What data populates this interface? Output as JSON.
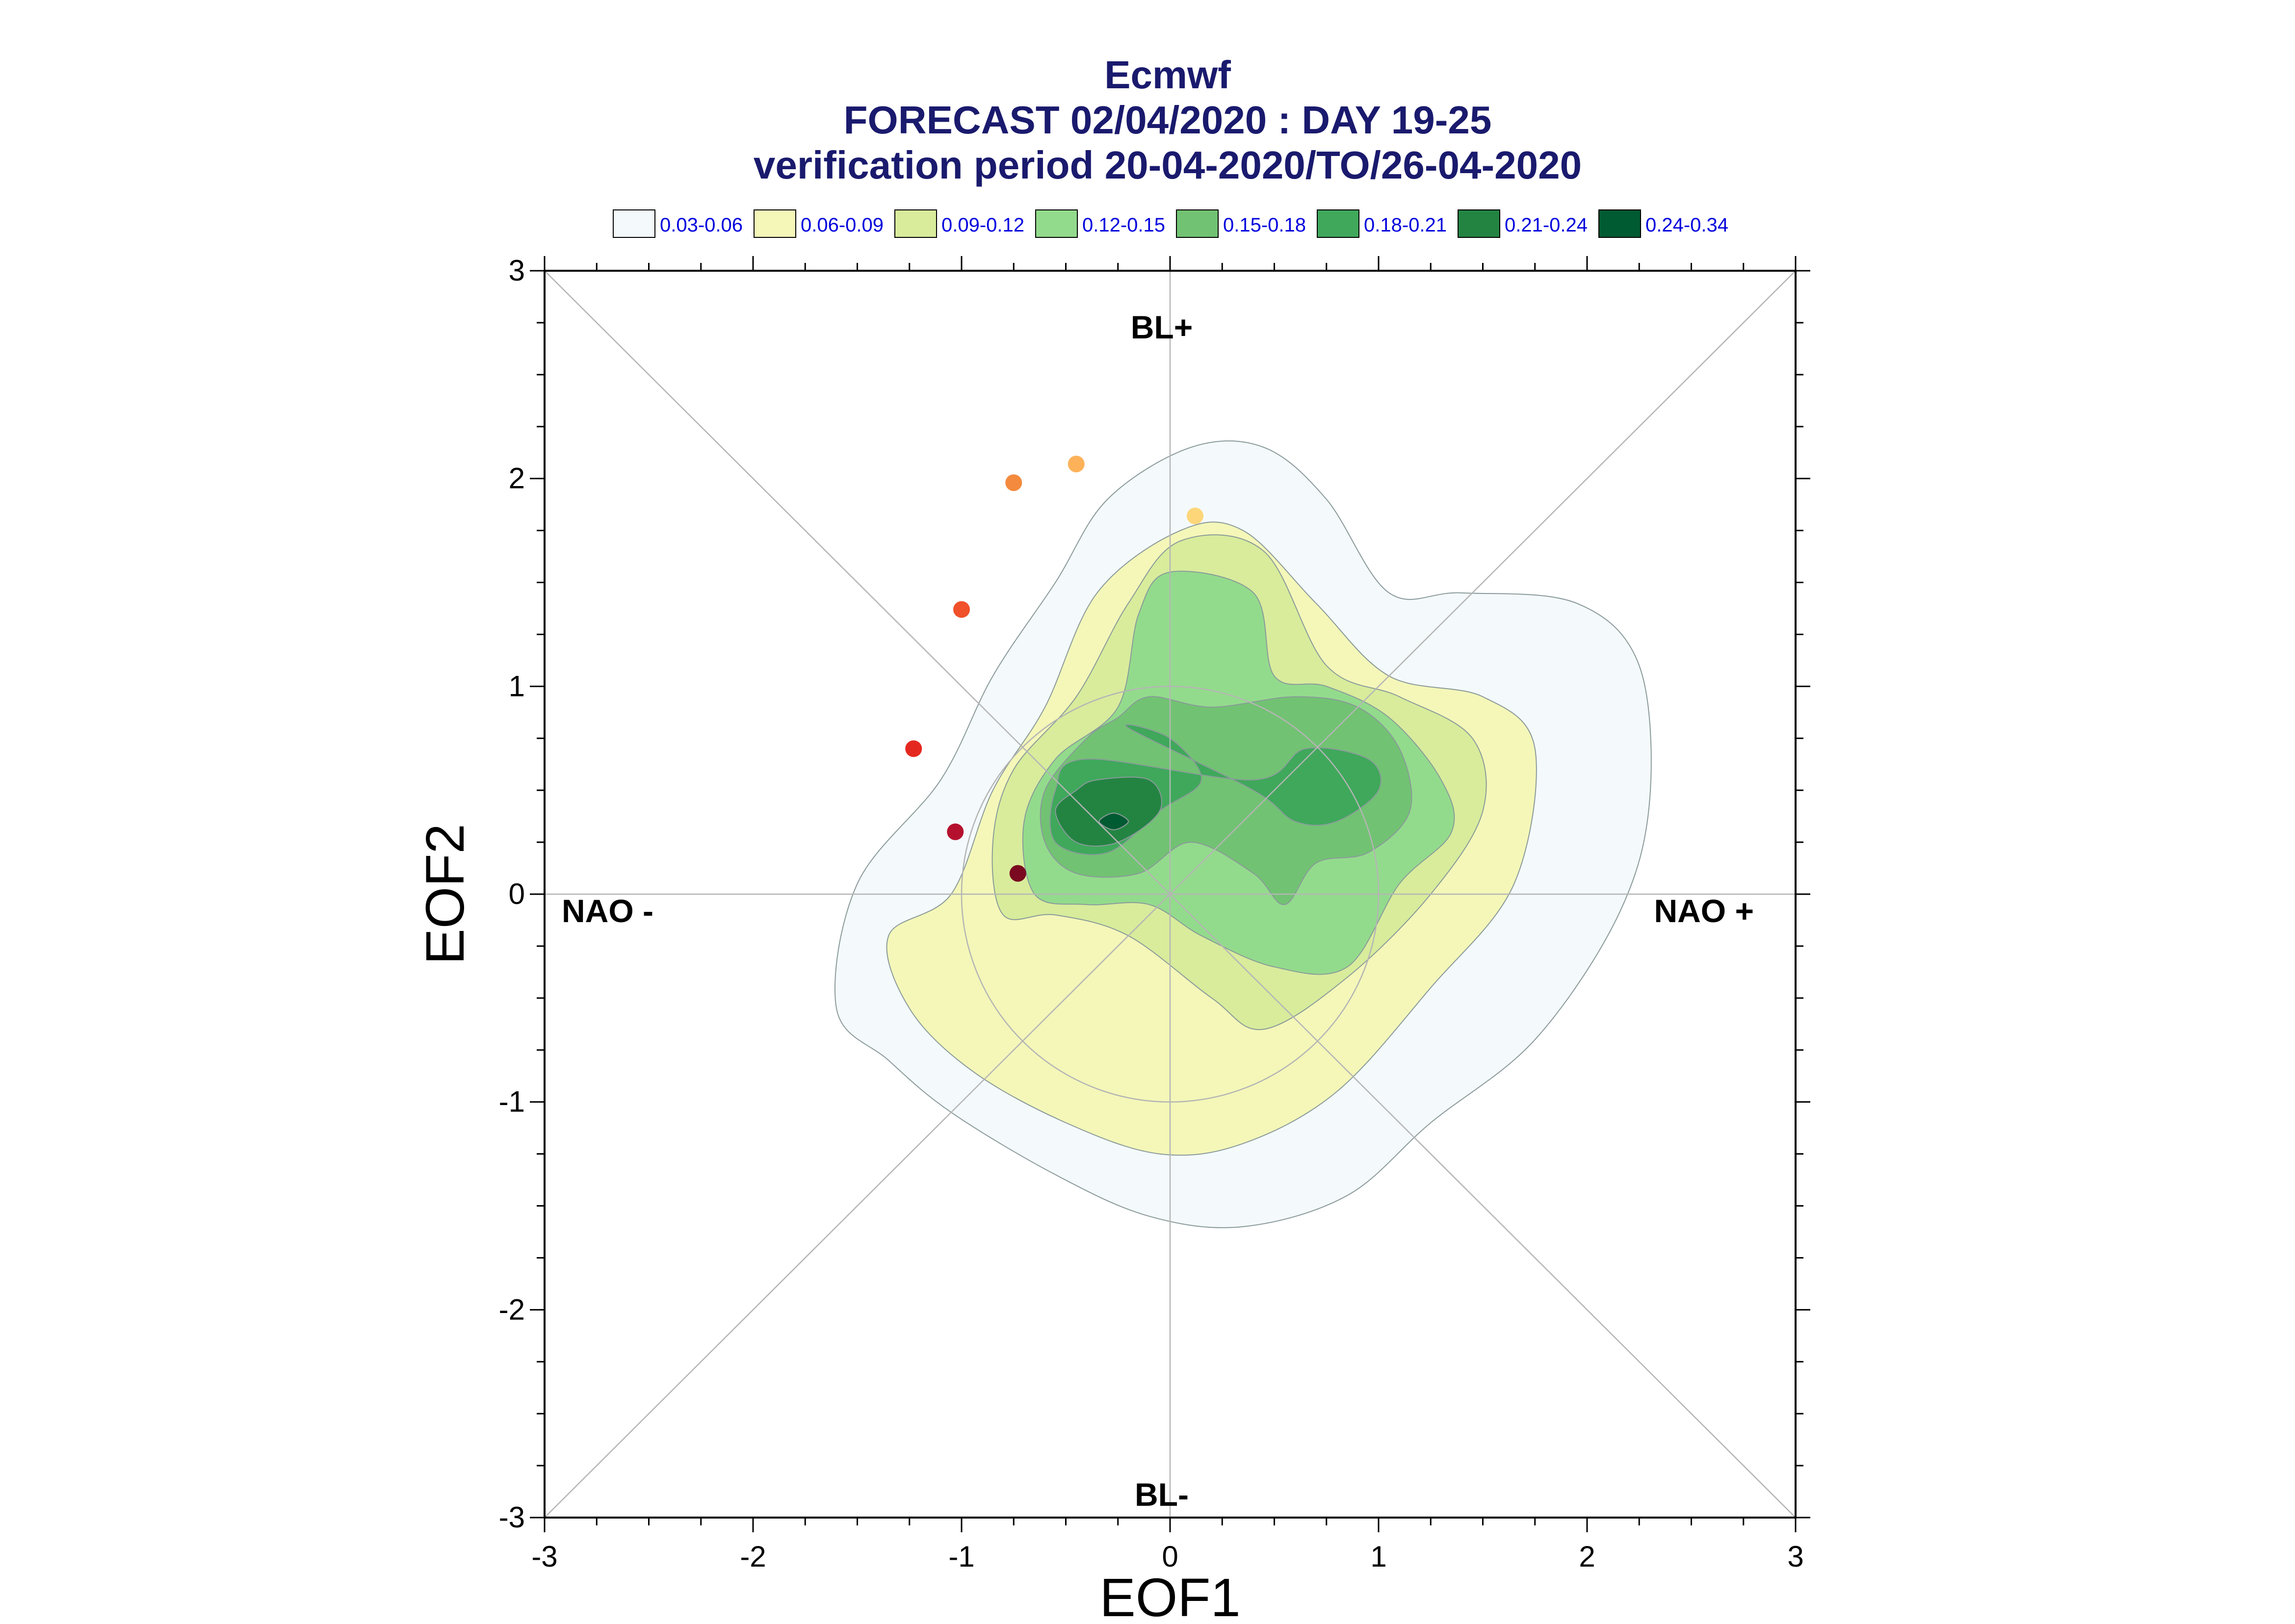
{
  "chart_data": {
    "type": "scatter",
    "title": "Ecmwf",
    "subtitle_lines": [
      "FORECAST 02/04/2020 : DAY 19-25",
      "verification period 20-04-2020/TO/26-04-2020"
    ],
    "xlabel": "EOF1",
    "ylabel": "EOF2",
    "xlim": [
      -3,
      3
    ],
    "ylim": [
      -3,
      3
    ],
    "xticks": [
      "-3",
      "-2",
      "-1",
      "0",
      "1",
      "2",
      "3"
    ],
    "yticks": [
      "-3",
      "-2",
      "-1",
      "0",
      "1",
      "2",
      "3"
    ],
    "grid": false,
    "legend_placement": "top",
    "legend": [
      {
        "label": "0.03-0.06",
        "color": "#f4f9fc"
      },
      {
        "label": "0.06-0.09",
        "color": "#f4f7b8"
      },
      {
        "label": "0.09-0.12",
        "color": "#d8ec9c"
      },
      {
        "label": "0.12-0.15",
        "color": "#93db8c"
      },
      {
        "label": "0.15-0.18",
        "color": "#72c273"
      },
      {
        "label": "0.18-0.21",
        "color": "#3fa85b"
      },
      {
        "label": "0.21-0.24",
        "color": "#238442"
      },
      {
        "label": "0.24-0.34",
        "color": "#005a32"
      }
    ],
    "regime_labels": {
      "top": "BL+",
      "bottom": "BL-",
      "left": "NAO -",
      "right": "NAO +"
    },
    "density_contours": [
      {
        "level": "0.03-0.06",
        "color": "#f4f9fc",
        "x": [
          0.1,
          0.45,
          0.75,
          1.05,
          1.4,
          1.95,
          2.25,
          2.3,
          2.15,
          1.75,
          1.25,
          0.85,
          0.35,
          -0.1,
          -0.55,
          -1.05,
          -1.35,
          -1.6,
          -1.5,
          -1.1,
          -0.85,
          -0.55,
          -0.3
        ],
        "y": [
          2.15,
          2.15,
          1.9,
          1.45,
          1.45,
          1.4,
          1.1,
          0.45,
          -0.1,
          -0.7,
          -1.1,
          -1.45,
          -1.6,
          -1.55,
          -1.35,
          -1.05,
          -0.8,
          -0.55,
          0.05,
          0.55,
          1.05,
          1.5,
          1.9
        ]
      },
      {
        "level": "0.06-0.09",
        "color": "#f4f7b8",
        "x": [
          0.05,
          0.35,
          0.7,
          1.05,
          1.5,
          1.75,
          1.65,
          1.25,
          0.8,
          0.35,
          -0.05,
          -0.5,
          -0.95,
          -1.25,
          -1.35,
          -1.05,
          -0.85,
          -0.6,
          -0.35
        ],
        "y": [
          1.75,
          1.75,
          1.4,
          1.05,
          0.95,
          0.7,
          0.05,
          -0.45,
          -0.95,
          -1.2,
          -1.25,
          -1.1,
          -0.85,
          -0.55,
          -0.2,
          0.0,
          0.5,
          0.9,
          1.45
        ]
      },
      {
        "level": "0.09-0.12",
        "color": "#d8ec9c",
        "x": [
          0.05,
          0.45,
          0.75,
          1.1,
          1.45,
          1.5,
          1.25,
          0.85,
          0.45,
          0.2,
          -0.2,
          -0.55,
          -0.8,
          -0.85,
          -0.75,
          -0.45,
          -0.2
        ],
        "y": [
          1.7,
          1.65,
          1.1,
          0.95,
          0.75,
          0.4,
          0.0,
          -0.4,
          -0.65,
          -0.5,
          -0.2,
          -0.1,
          -0.1,
          0.25,
          0.6,
          0.95,
          1.4
        ]
      },
      {
        "level": "0.12-0.15",
        "color": "#93db8c",
        "x": [
          0.0,
          0.4,
          0.5,
          0.75,
          1.05,
          1.3,
          1.35,
          1.1,
          0.85,
          0.5,
          0.15,
          -0.1,
          -0.4,
          -0.65,
          -0.7,
          -0.55,
          -0.25,
          -0.15
        ],
        "y": [
          1.55,
          1.45,
          1.05,
          1.0,
          0.85,
          0.55,
          0.3,
          0.05,
          -0.35,
          -0.35,
          -0.2,
          -0.05,
          -0.05,
          0.0,
          0.35,
          0.65,
          0.9,
          1.35
        ]
      },
      {
        "level": "0.15-0.18",
        "color": "#72c273",
        "x": [
          -0.1,
          0.2,
          0.6,
          0.9,
          1.1,
          1.15,
          0.95,
          0.7,
          0.55,
          0.4,
          0.1,
          -0.15,
          -0.45,
          -0.6,
          -0.6,
          -0.4,
          -0.25
        ],
        "y": [
          0.95,
          0.9,
          0.95,
          0.9,
          0.7,
          0.4,
          0.2,
          0.15,
          -0.05,
          0.1,
          0.25,
          0.1,
          0.1,
          0.25,
          0.5,
          0.75,
          0.85
        ]
      },
      {
        "level": "0.18-0.21",
        "color": "#3fa85b",
        "x": [
          -0.2,
          0.0,
          0.15,
          -0.05,
          -0.3,
          -0.55,
          -0.55,
          -0.4,
          0.4,
          0.65,
          0.95,
          1.0,
          0.8,
          0.6,
          0.4
        ],
        "y": [
          0.8,
          0.75,
          0.55,
          0.4,
          0.2,
          0.25,
          0.5,
          0.65,
          0.55,
          0.7,
          0.65,
          0.5,
          0.35,
          0.35,
          0.5
        ]
      },
      {
        "level": "0.21-0.24",
        "color": "#238442",
        "x": [
          -0.35,
          -0.1,
          -0.05,
          -0.25,
          -0.45,
          -0.55,
          -0.45
        ],
        "y": [
          0.55,
          0.55,
          0.4,
          0.25,
          0.25,
          0.4,
          0.5
        ]
      },
      {
        "level": "0.24-0.34",
        "color": "#005a32",
        "x": [
          -0.27,
          -0.2,
          -0.27,
          -0.34
        ],
        "y": [
          0.39,
          0.35,
          0.31,
          0.35
        ]
      }
    ],
    "points": [
      {
        "x": -0.73,
        "y": 0.1,
        "color": "#7a0a1f"
      },
      {
        "x": -1.03,
        "y": 0.3,
        "color": "#b5112e"
      },
      {
        "x": -1.23,
        "y": 0.7,
        "color": "#e5281f"
      },
      {
        "x": -1.0,
        "y": 1.37,
        "color": "#f0502a"
      },
      {
        "x": -0.75,
        "y": 1.98,
        "color": "#f48a3d"
      },
      {
        "x": -0.45,
        "y": 2.07,
        "color": "#fdb25a"
      },
      {
        "x": 0.12,
        "y": 1.82,
        "color": "#fdd67a"
      }
    ]
  }
}
